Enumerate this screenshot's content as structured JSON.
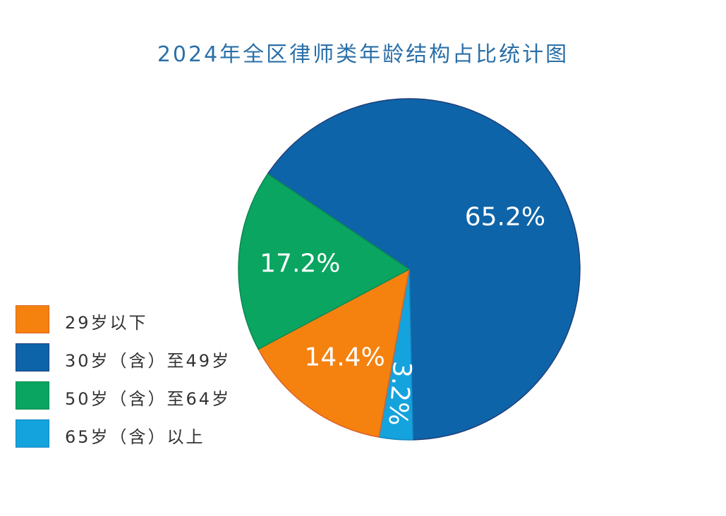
{
  "chart_data": {
    "type": "pie",
    "title": "2024年全区律师类年龄结构占比统计图",
    "slices": [
      {
        "label": "29岁以下",
        "value": 14.4,
        "value_label": "14.4%",
        "color": "#f5820f",
        "border": "#d8622a"
      },
      {
        "label": "30岁（含）至49岁",
        "value": 65.2,
        "value_label": "65.2%",
        "color": "#0e64a8",
        "border": "#1f3f7a"
      },
      {
        "label": "50岁（含）至64岁",
        "value": 17.2,
        "value_label": "17.2%",
        "color": "#0aa560",
        "border": "#0a8a50"
      },
      {
        "label": "65岁（含）以上",
        "value": 3.2,
        "value_label": "3.2%",
        "color": "#14a3dd",
        "border": "#1585c0"
      }
    ],
    "legend_position": "left",
    "draw_order": [
      "30岁（含）至49岁",
      "65岁（含）以上",
      "29岁以下",
      "50岁（含）至64岁"
    ]
  }
}
